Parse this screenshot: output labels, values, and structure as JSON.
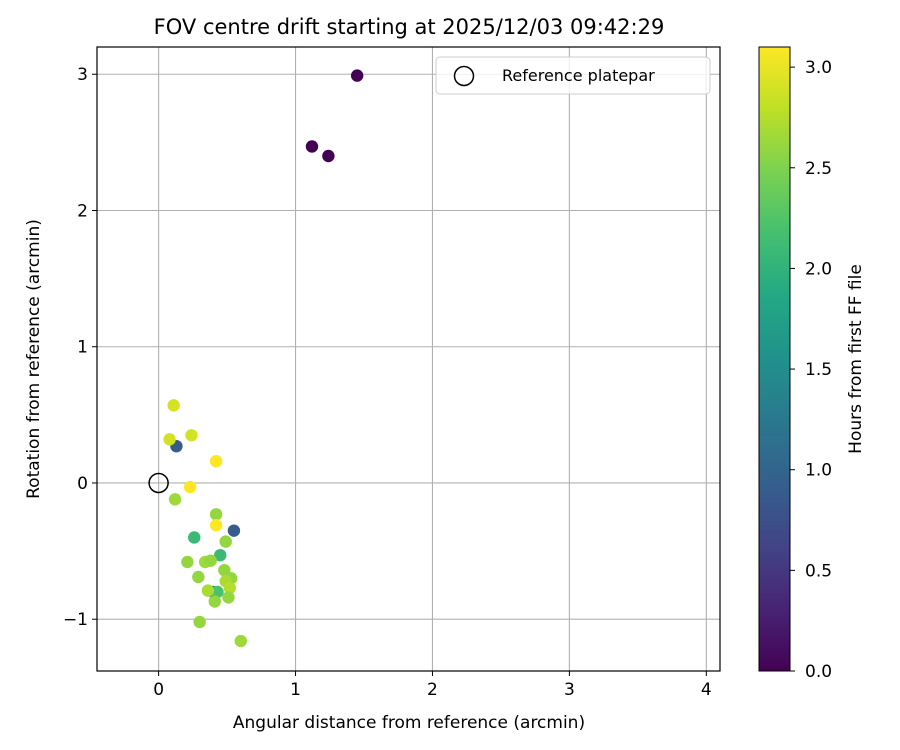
{
  "chart_data": {
    "type": "scatter",
    "title": "FOV centre drift starting at 2025/12/03 09:42:29",
    "xlabel": "Angular distance from reference (arcmin)",
    "ylabel": "Rotation from reference (arcmin)",
    "xlim": [
      -0.45,
      4.1
    ],
    "ylim": [
      -1.38,
      3.2
    ],
    "xticks": [
      0,
      1,
      2,
      3,
      4
    ],
    "yticks": [
      -1,
      0,
      1,
      2,
      3
    ],
    "xtick_labels": [
      "0",
      "1",
      "2",
      "3",
      "4"
    ],
    "ytick_labels": [
      "−1",
      "0",
      "1",
      "2",
      "3"
    ],
    "grid": true,
    "legend": {
      "label": "Reference platepar",
      "location": "upper right"
    },
    "reference_point": {
      "x": 0,
      "y": 0
    },
    "colorbar": {
      "label": "Hours from first FF file",
      "colormap": "viridis",
      "range": [
        0.0,
        3.1
      ],
      "ticks": [
        0.0,
        0.5,
        1.0,
        1.5,
        2.0,
        2.5,
        3.0
      ],
      "tick_labels": [
        "0.0",
        "0.5",
        "1.0",
        "1.5",
        "2.0",
        "2.5",
        "3.0"
      ]
    },
    "points": [
      {
        "x": 1.45,
        "y": 2.99,
        "hours": 0.0
      },
      {
        "x": 1.12,
        "y": 2.47,
        "hours": 0.0
      },
      {
        "x": 1.24,
        "y": 2.4,
        "hours": 0.0
      },
      {
        "x": 0.13,
        "y": 0.27,
        "hours": 0.9
      },
      {
        "x": 0.55,
        "y": -0.35,
        "hours": 0.9
      },
      {
        "x": 0.4,
        "y": -0.8,
        "hours": 1.4
      },
      {
        "x": 0.26,
        "y": -0.4,
        "hours": 2.1
      },
      {
        "x": 0.45,
        "y": -0.53,
        "hours": 2.1
      },
      {
        "x": 0.43,
        "y": -0.8,
        "hours": 2.2
      },
      {
        "x": 0.12,
        "y": -0.12,
        "hours": 2.65
      },
      {
        "x": 0.42,
        "y": -0.23,
        "hours": 2.6
      },
      {
        "x": 0.49,
        "y": -0.43,
        "hours": 2.6
      },
      {
        "x": 0.21,
        "y": -0.58,
        "hours": 2.6
      },
      {
        "x": 0.34,
        "y": -0.58,
        "hours": 2.65
      },
      {
        "x": 0.38,
        "y": -0.57,
        "hours": 2.6
      },
      {
        "x": 0.29,
        "y": -0.69,
        "hours": 2.6
      },
      {
        "x": 0.48,
        "y": -0.64,
        "hours": 2.6
      },
      {
        "x": 0.53,
        "y": -0.7,
        "hours": 2.6
      },
      {
        "x": 0.49,
        "y": -0.72,
        "hours": 2.7
      },
      {
        "x": 0.52,
        "y": -0.77,
        "hours": 2.75
      },
      {
        "x": 0.36,
        "y": -0.79,
        "hours": 2.7
      },
      {
        "x": 0.51,
        "y": -0.84,
        "hours": 2.6
      },
      {
        "x": 0.41,
        "y": -0.87,
        "hours": 2.6
      },
      {
        "x": 0.3,
        "y": -1.02,
        "hours": 2.6
      },
      {
        "x": 0.6,
        "y": -1.16,
        "hours": 2.65
      },
      {
        "x": 0.11,
        "y": 0.57,
        "hours": 2.9
      },
      {
        "x": 0.08,
        "y": 0.32,
        "hours": 2.9
      },
      {
        "x": 0.24,
        "y": 0.35,
        "hours": 2.9
      },
      {
        "x": 0.42,
        "y": 0.16,
        "hours": 3.1
      },
      {
        "x": 0.23,
        "y": -0.03,
        "hours": 3.1
      },
      {
        "x": 0.42,
        "y": -0.31,
        "hours": 3.1
      }
    ]
  }
}
